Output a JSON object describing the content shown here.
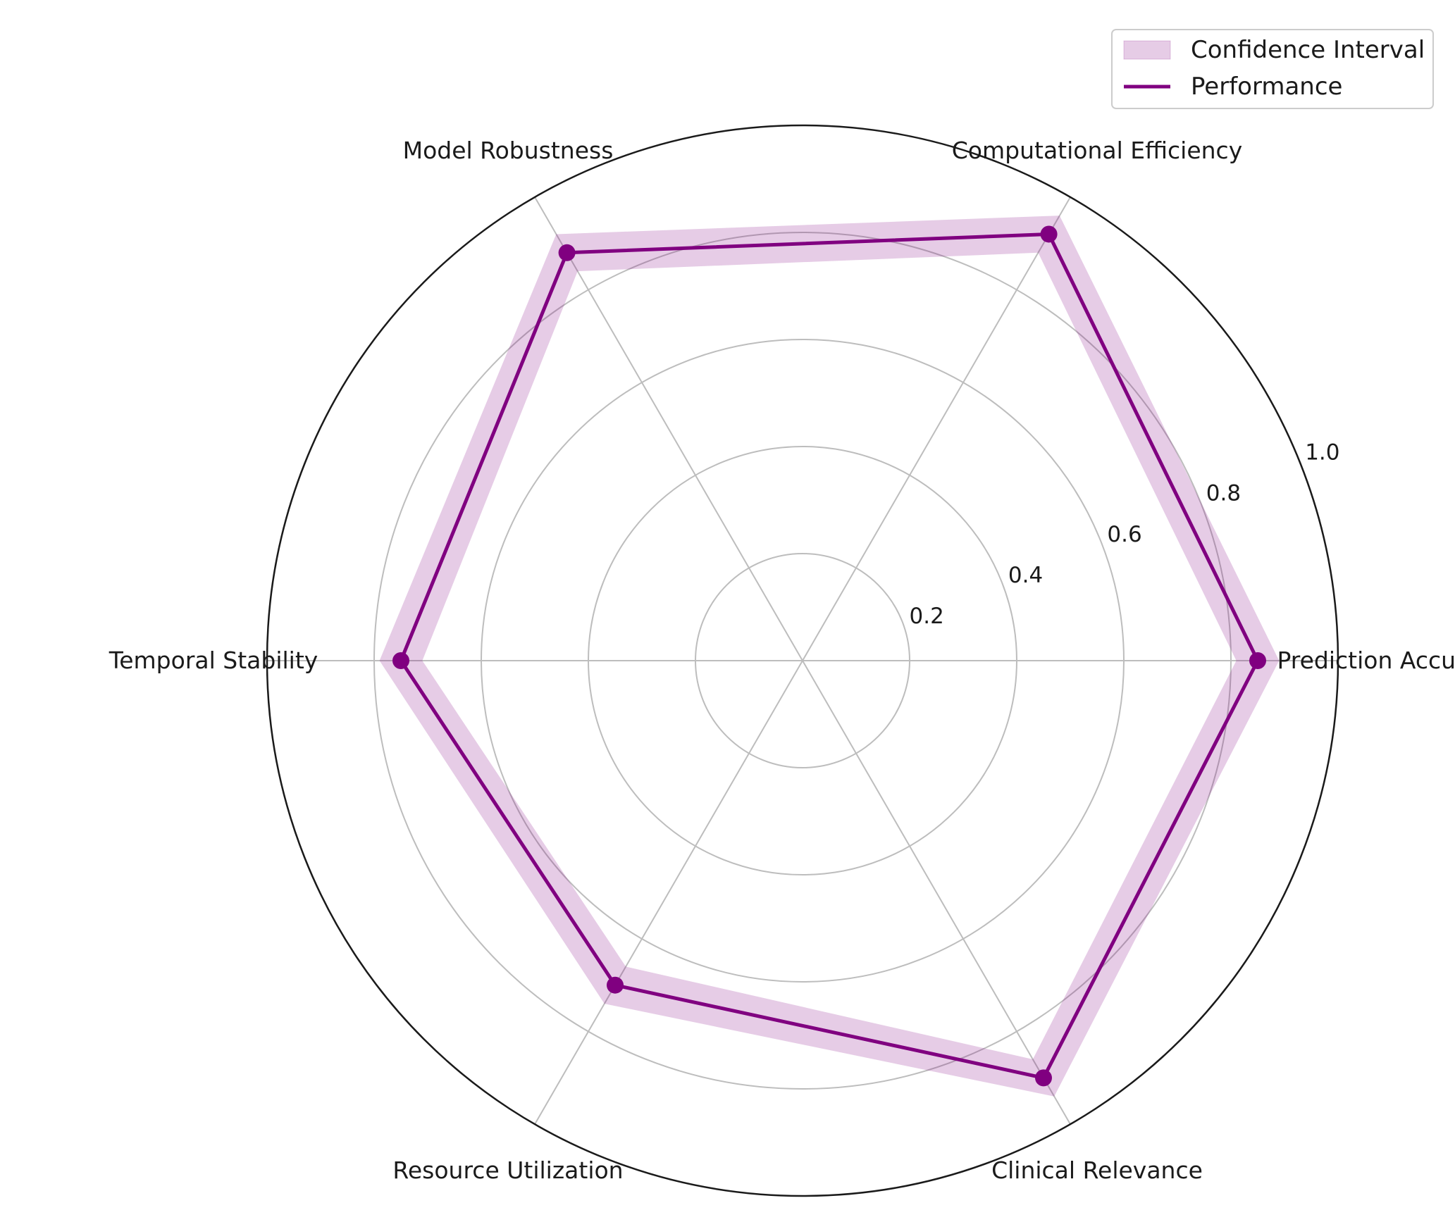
{
  "chart_data": {
    "type": "radar",
    "categories": [
      "Prediction Accuracy",
      "Computational Efficiency",
      "Model Robustness",
      "Temporal Stability",
      "Resource Utilization",
      "Clinical Relevance"
    ],
    "series": [
      {
        "name": "Performance",
        "values": [
          0.85,
          0.92,
          0.88,
          0.75,
          0.7,
          0.9
        ],
        "color": "#800080"
      }
    ],
    "confidence_interval": {
      "name": "Confidence Interval",
      "lower": [
        0.81,
        0.88,
        0.84,
        0.71,
        0.66,
        0.86
      ],
      "upper": [
        0.89,
        0.96,
        0.92,
        0.79,
        0.74,
        0.94
      ],
      "color": "#800080"
    },
    "rlim": [
      0,
      1.0
    ],
    "rticks": [
      "0.2",
      "0.4",
      "0.6",
      "0.8",
      "1.0"
    ],
    "grid": true,
    "legend": {
      "position": "upper-right",
      "entries": [
        "Confidence Interval",
        "Performance"
      ]
    },
    "colors": {
      "line": "#800080",
      "fill": "#800080",
      "grid": "#bdbdbd",
      "frame": "#1a1a1a"
    }
  }
}
